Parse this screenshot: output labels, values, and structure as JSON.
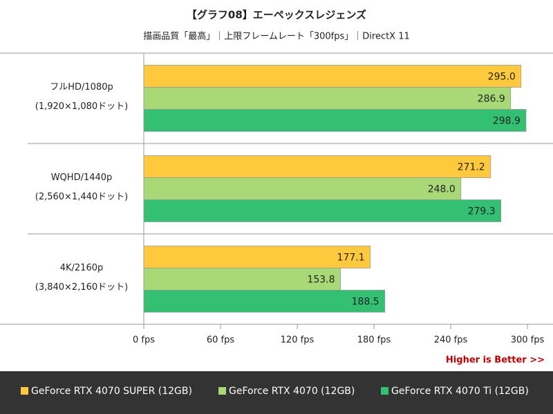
{
  "chart_data": {
    "type": "bar",
    "orientation": "horizontal",
    "title": "【グラフ08】エーペックスレジェンズ",
    "subtitle": "描画品質「最高」｜上限フレームレート「300fps」｜DirectX 11",
    "categories": [
      "フルHD/1080p",
      "WQHD/1440p",
      "4K/2160p"
    ],
    "category_sublabels": [
      "(1,920×1,080ドット)",
      "(2,560×1,440ドット)",
      "(3,840×2,160ドット)"
    ],
    "series": [
      {
        "name": "GeForce RTX 4070 SUPER (12GB)",
        "color": "#fec93c",
        "values": [
          295.0,
          271.2,
          177.1
        ],
        "value_labels": [
          "295.0",
          "271.2",
          "177.1"
        ]
      },
      {
        "name": "GeForce RTX 4070 (12GB)",
        "color": "#a9d977",
        "values": [
          286.9,
          248.0,
          153.8
        ],
        "value_labels": [
          "286.9",
          "248.0",
          "153.8"
        ]
      },
      {
        "name": "GeForce RTX 4070 Ti (12GB)",
        "color": "#33c073",
        "values": [
          298.9,
          279.3,
          188.5
        ],
        "value_labels": [
          "298.9",
          "279.3",
          "188.5"
        ]
      }
    ],
    "xlim": [
      0,
      300
    ],
    "xticks": [
      {
        "value": 0,
        "label": "0 fps"
      },
      {
        "value": 60,
        "label": "60 fps"
      },
      {
        "value": 120,
        "label": "120 fps"
      },
      {
        "value": 180,
        "label": "180 fps"
      },
      {
        "value": 240,
        "label": "240 fps"
      },
      {
        "value": 300,
        "label": "300 fps"
      }
    ],
    "annotation": "Higher is Better >>",
    "grid": false
  }
}
